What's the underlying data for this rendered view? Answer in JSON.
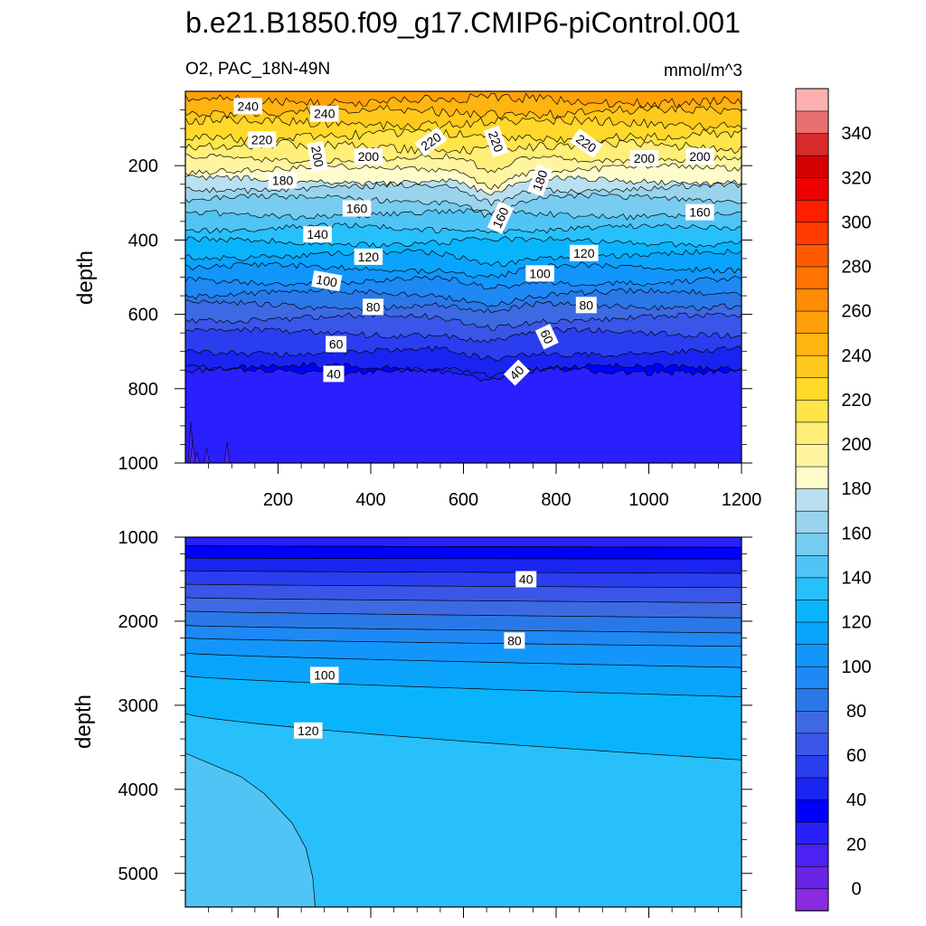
{
  "chart_data": {
    "type": "contour",
    "title": "b.e21.B1850.f09_g17.CMIP6-piControl.001",
    "left_string": "O2, PAC_18N-49N",
    "right_string": "mmol/m^3",
    "colorbar": {
      "levels": [
        -10,
        0,
        10,
        20,
        30,
        40,
        50,
        60,
        70,
        80,
        90,
        100,
        110,
        120,
        130,
        140,
        150,
        160,
        170,
        180,
        190,
        200,
        210,
        220,
        230,
        240,
        250,
        260,
        270,
        280,
        290,
        300,
        310,
        320,
        330,
        340,
        350,
        360
      ],
      "tick_labels": [
        "0",
        "20",
        "40",
        "60",
        "80",
        "100",
        "120",
        "140",
        "160",
        "180",
        "200",
        "220",
        "240",
        "260",
        "280",
        "300",
        "320",
        "340"
      ],
      "colors": [
        "#8a2be2",
        "#6a24e6",
        "#4c22f2",
        "#2a1ffd",
        "#0000ff",
        "#1a24f0",
        "#2a3ef0",
        "#3a56e8",
        "#3d6ae3",
        "#2a78e8",
        "#1e88f5",
        "#1296fb",
        "#0aa4fc",
        "#0ab4fd",
        "#28c0fb",
        "#50c4f5",
        "#78ccef",
        "#9ad4ec",
        "#b8e0f0",
        "#fffccc",
        "#fff5a0",
        "#ffee77",
        "#ffe44a",
        "#ffd82a",
        "#ffc81c",
        "#ffb412",
        "#ffa00a",
        "#ff8c04",
        "#ff7300",
        "#ff5a00",
        "#ff3c00",
        "#ff1e00",
        "#f00000",
        "#d40000",
        "#d82a2a",
        "#e87070",
        "#ffb0b0"
      ]
    },
    "panels": [
      {
        "name": "upper",
        "ylabel": "depth",
        "ylim": [
          1000,
          0
        ],
        "xlim": [
          0,
          1200
        ],
        "xticks": [
          200,
          400,
          600,
          800,
          1000,
          1200
        ],
        "yticks": [
          200,
          400,
          600,
          800,
          1000
        ],
        "contour_labels": [
          {
            "text": "240",
            "x": 135,
            "y": 40,
            "angle": 0
          },
          {
            "text": "240",
            "x": 300,
            "y": 60,
            "angle": 0
          },
          {
            "text": "220",
            "x": 165,
            "y": 130,
            "angle": 0
          },
          {
            "text": "200",
            "x": 285,
            "y": 175,
            "angle": 80
          },
          {
            "text": "200",
            "x": 395,
            "y": 175,
            "angle": 0
          },
          {
            "text": "220",
            "x": 530,
            "y": 135,
            "angle": -35
          },
          {
            "text": "220",
            "x": 670,
            "y": 135,
            "angle": 70
          },
          {
            "text": "220",
            "x": 865,
            "y": 140,
            "angle": 35
          },
          {
            "text": "180",
            "x": 210,
            "y": 240,
            "angle": 0
          },
          {
            "text": "180",
            "x": 765,
            "y": 240,
            "angle": -70
          },
          {
            "text": "200",
            "x": 990,
            "y": 180,
            "angle": 0
          },
          {
            "text": "200",
            "x": 1110,
            "y": 175,
            "angle": 0
          },
          {
            "text": "160",
            "x": 370,
            "y": 315,
            "angle": 0
          },
          {
            "text": "160",
            "x": 680,
            "y": 340,
            "angle": -65
          },
          {
            "text": "160",
            "x": 1110,
            "y": 325,
            "angle": 0
          },
          {
            "text": "140",
            "x": 285,
            "y": 385,
            "angle": 0
          },
          {
            "text": "120",
            "x": 395,
            "y": 445,
            "angle": 0
          },
          {
            "text": "120",
            "x": 860,
            "y": 435,
            "angle": 0
          },
          {
            "text": "100",
            "x": 305,
            "y": 510,
            "angle": 10
          },
          {
            "text": "100",
            "x": 765,
            "y": 490,
            "angle": 0
          },
          {
            "text": "80",
            "x": 405,
            "y": 580,
            "angle": 0
          },
          {
            "text": "80",
            "x": 865,
            "y": 575,
            "angle": 0
          },
          {
            "text": "60",
            "x": 325,
            "y": 680,
            "angle": 0
          },
          {
            "text": "60",
            "x": 780,
            "y": 660,
            "angle": 65
          },
          {
            "text": "40",
            "x": 320,
            "y": 760,
            "angle": 0
          },
          {
            "text": "40",
            "x": 715,
            "y": 757,
            "angle": -45
          }
        ]
      },
      {
        "name": "lower",
        "ylabel": "depth",
        "ylim": [
          5400,
          1000
        ],
        "xlim": [
          0,
          1200
        ],
        "yticks": [
          1000,
          2000,
          3000,
          4000,
          5000
        ],
        "contour_labels": [
          {
            "text": "40",
            "x": 735,
            "y": 1500,
            "angle": 0
          },
          {
            "text": "80",
            "x": 710,
            "y": 2230,
            "angle": 0
          },
          {
            "text": "100",
            "x": 300,
            "y": 2640,
            "angle": 0
          },
          {
            "text": "120",
            "x": 265,
            "y": 3300,
            "angle": 0
          }
        ]
      }
    ]
  }
}
